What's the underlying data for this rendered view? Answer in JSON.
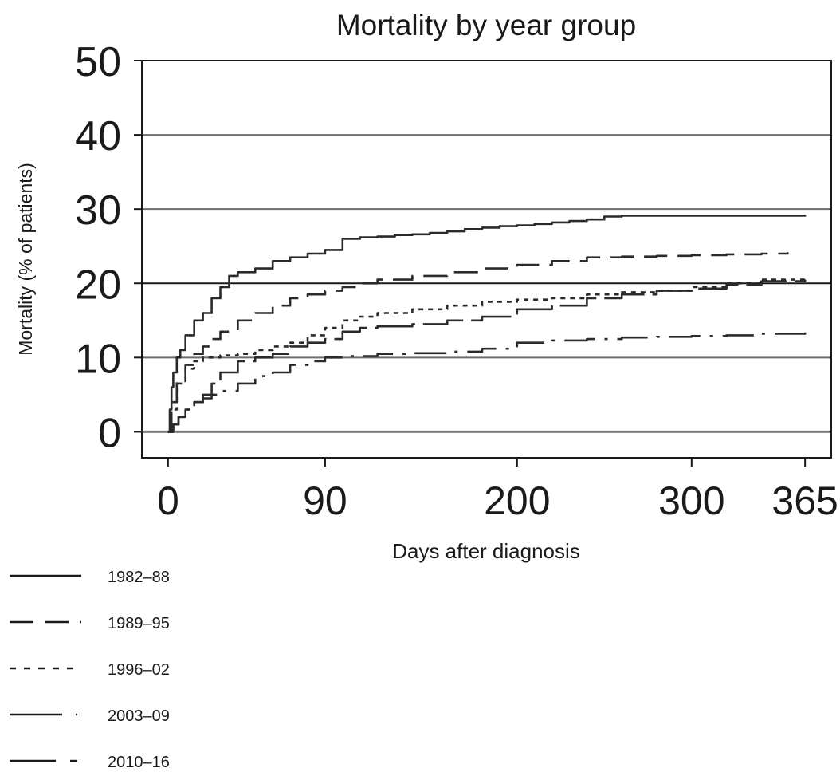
{
  "chart_data": {
    "type": "line",
    "title": "Mortality by year group",
    "xlabel": "Days after diagnosis",
    "ylabel": "Mortality (% of patients)",
    "xlim": [
      -15,
      380
    ],
    "ylim": [
      -3.5,
      50
    ],
    "x_ticks": [
      0,
      90,
      200,
      300,
      365
    ],
    "y_ticks": [
      0,
      10,
      20,
      30,
      40,
      50
    ],
    "grid": "horizontal",
    "legend_placement": "bottom-left",
    "series": [
      {
        "name": "1982–88",
        "style": "solid",
        "x": [
          0,
          1,
          2,
          3,
          5,
          7,
          10,
          15,
          20,
          25,
          30,
          35,
          40,
          50,
          60,
          70,
          80,
          90,
          100,
          110,
          120,
          130,
          140,
          150,
          160,
          170,
          180,
          190,
          200,
          210,
          220,
          230,
          240,
          250,
          260,
          270,
          280,
          290,
          300,
          310,
          320,
          330,
          340,
          350,
          365
        ],
        "y": [
          0,
          3,
          6,
          8,
          10,
          11,
          13,
          15,
          16,
          18,
          19.5,
          21,
          21.5,
          22,
          23,
          23.5,
          24,
          24.5,
          26,
          26.2,
          26.3,
          26.5,
          26.6,
          26.8,
          27,
          27.3,
          27.5,
          27.7,
          27.8,
          28,
          28.2,
          28.4,
          28.6,
          29,
          29.1,
          29.1,
          29.1,
          29.1,
          29.1,
          29.1,
          29.1,
          29.1,
          29.1,
          29.1,
          29
        ]
      },
      {
        "name": "1989–95",
        "style": "dash",
        "x": [
          0,
          2,
          5,
          10,
          15,
          20,
          25,
          30,
          40,
          50,
          60,
          70,
          80,
          90,
          100,
          110,
          120,
          140,
          160,
          180,
          200,
          220,
          240,
          260,
          280,
          300,
          320,
          340,
          355
        ],
        "y": [
          0,
          4,
          7,
          9,
          10.5,
          11.5,
          12.5,
          13.5,
          15,
          16,
          17,
          18,
          18.5,
          19,
          19.5,
          20,
          20.5,
          21,
          21.5,
          22,
          22.5,
          23,
          23.5,
          23.6,
          23.7,
          23.8,
          23.9,
          24,
          24.2
        ]
      },
      {
        "name": "1996–02",
        "style": "dot",
        "x": [
          0,
          2,
          5,
          10,
          15,
          20,
          30,
          40,
          50,
          60,
          70,
          80,
          90,
          100,
          110,
          120,
          140,
          160,
          180,
          200,
          220,
          240,
          260,
          280,
          300,
          320,
          340,
          365
        ],
        "y": [
          0,
          3,
          6.5,
          8.5,
          9.5,
          10,
          10.3,
          10.5,
          11,
          11.5,
          12,
          13,
          14,
          15,
          15.5,
          16,
          16.5,
          17,
          17.5,
          17.8,
          18,
          18.5,
          18.8,
          19,
          19.5,
          20,
          20.5,
          20.8
        ]
      },
      {
        "name": "2003–09",
        "style": "long-dash",
        "x": [
          0,
          3,
          6,
          10,
          15,
          20,
          25,
          30,
          40,
          50,
          60,
          70,
          80,
          90,
          100,
          110,
          120,
          140,
          160,
          180,
          200,
          220,
          240,
          260,
          280,
          300,
          320,
          340,
          365
        ],
        "y": [
          0,
          1,
          2,
          3,
          4,
          5,
          6.5,
          8,
          9.5,
          10,
          10.5,
          11.5,
          12,
          12.5,
          13.5,
          14,
          14.2,
          14.5,
          15,
          15.5,
          16.5,
          17,
          18,
          18.5,
          19,
          19.3,
          19.8,
          20.3,
          20.5
        ]
      },
      {
        "name": "2010–16",
        "style": "dash-dot",
        "x": [
          0,
          3,
          6,
          10,
          15,
          20,
          25,
          30,
          40,
          50,
          60,
          70,
          80,
          90,
          100,
          120,
          140,
          160,
          180,
          200,
          220,
          240,
          260,
          280,
          300,
          320,
          340,
          365
        ],
        "y": [
          0,
          1,
          2,
          3,
          4,
          4.5,
          5,
          5.5,
          6.5,
          7.5,
          8,
          9,
          9.5,
          10,
          10.2,
          10.5,
          10.6,
          10.8,
          11.2,
          12,
          12.3,
          12.5,
          12.7,
          12.8,
          12.9,
          13,
          13.2,
          13.5
        ]
      }
    ]
  }
}
